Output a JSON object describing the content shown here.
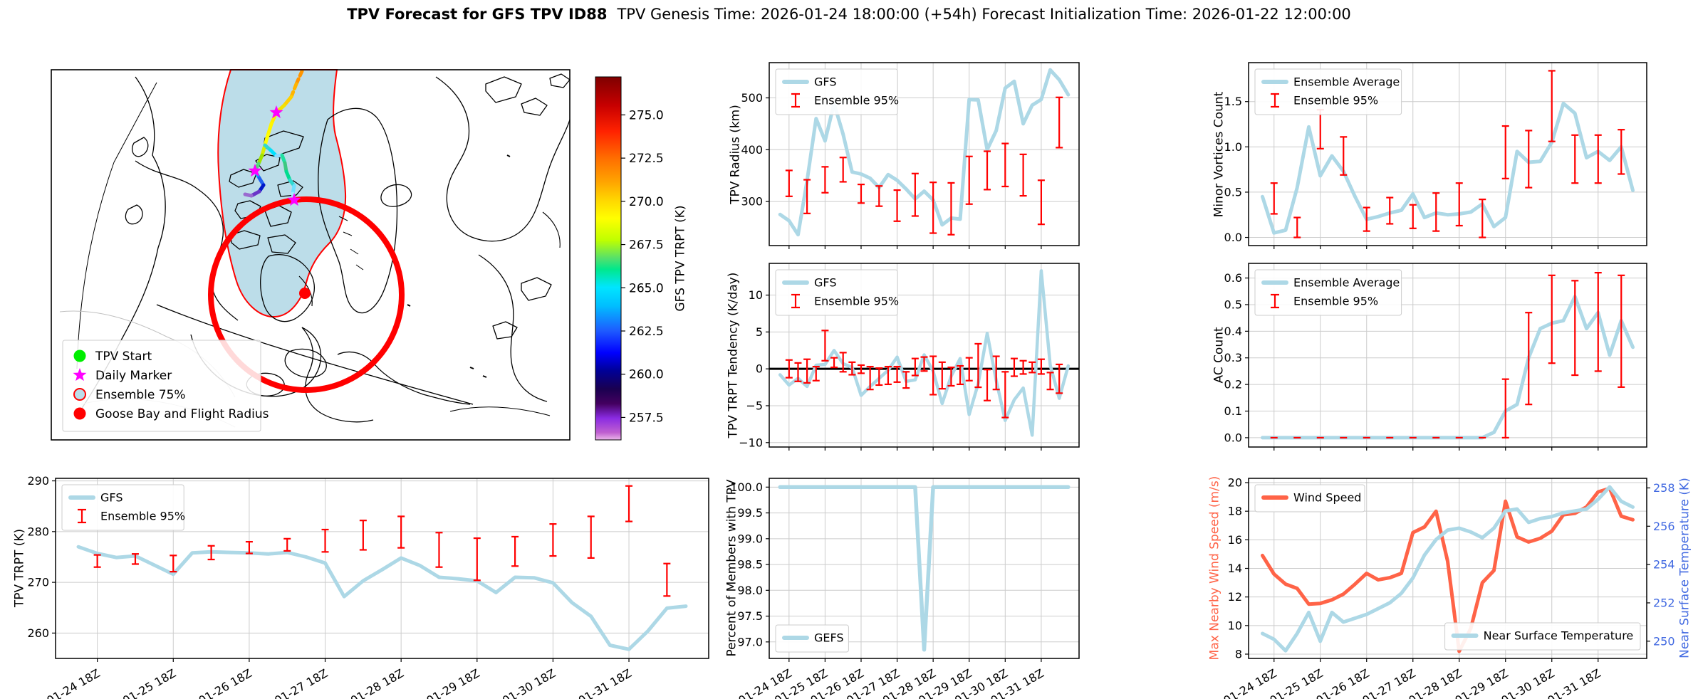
{
  "title": {
    "bold": "TPV Forecast for GFS TPV ID88",
    "tail": "TPV Genesis Time: 2026-01-24 18:00:00 (+54h)   Forecast Initialization Time: 2026-01-22 12:00:00"
  },
  "colors": {
    "line_blue": "#ADD8E6",
    "error_red": "#FF0000",
    "wind_orange": "#FF6347",
    "temp_axis_blue": "#4169E1",
    "grid": "#cccccc",
    "zero_line": "#000000",
    "ensemble_fill": "#bcdde9",
    "ensemble_edge": "#ff0000",
    "daily_marker": "#ff00ff",
    "tpv_start": "#00ee00",
    "goose_bay": "#ff0000"
  },
  "time_axis": {
    "tick_indices": [
      1,
      5,
      9,
      13,
      17,
      21,
      25,
      29
    ],
    "tick_labels": [
      "01-24 18Z",
      "01-25 18Z",
      "01-26 18Z",
      "01-27 18Z",
      "01-28 18Z",
      "01-29 18Z",
      "01-30 18Z",
      "01-31 18Z"
    ],
    "xlim": [
      -1.2,
      33.2
    ],
    "n_points": 33
  },
  "map": {
    "legend": [
      {
        "marker": "dot",
        "color": "#00ee00",
        "label": "TPV Start"
      },
      {
        "marker": "star",
        "color": "#ff00ff",
        "label": "Daily Marker"
      },
      {
        "marker": "circle-outline",
        "color": "#bcdde9",
        "edge": "#ff0000",
        "label": "Ensemble 75%"
      },
      {
        "marker": "dot",
        "color": "#ff0000",
        "label": "Goose Bay and Flight Radius"
      }
    ],
    "colorbar": {
      "label": "GFS TPV TRPT (K)",
      "ticks": [
        257.5,
        260.0,
        262.5,
        265.0,
        267.5,
        270.0,
        272.5,
        275.0
      ],
      "vmin": 256.2,
      "vmax": 277.2
    }
  },
  "chart_data": [
    {
      "id": "tpv-trpt",
      "type": "line",
      "ylabel": "TPV TRPT (K)",
      "ylim": [
        255.0,
        290.5
      ],
      "yticks": [
        260,
        270,
        280,
        290
      ],
      "ydec": 0,
      "show_x_labels": true,
      "legends": [
        {
          "pos": "tl",
          "entries": [
            {
              "swatch": "line",
              "color": "#ADD8E6",
              "label": "GFS"
            },
            {
              "swatch": "errorbar",
              "color": "#FF0000",
              "label": "Ensemble 95%"
            }
          ]
        }
      ],
      "series": [
        {
          "name": "GFS",
          "color": "#ADD8E6",
          "width": 5,
          "values": [
            277.0,
            275.7,
            274.9,
            275.2,
            273.4,
            271.6,
            275.8,
            276.0,
            275.9,
            275.8,
            275.6,
            275.9,
            275.0,
            273.8,
            267.2,
            270.3,
            272.5,
            274.8,
            273.3,
            271.0,
            270.7,
            270.3,
            268.0,
            271.0,
            270.9,
            269.9,
            266.0,
            263.3,
            257.6,
            256.8,
            260.4,
            264.9,
            265.3
          ]
        }
      ],
      "errorbars": [
        [
          1,
          273.0,
          275.4
        ],
        [
          3,
          273.6,
          275.6
        ],
        [
          5,
          272.1,
          275.3
        ],
        [
          7,
          274.5,
          277.2
        ],
        [
          9,
          275.7,
          278.0
        ],
        [
          11,
          276.2,
          278.6
        ],
        [
          13,
          276.0,
          280.4
        ],
        [
          15,
          276.4,
          282.2
        ],
        [
          17,
          276.8,
          283.0
        ],
        [
          19,
          273.0,
          279.8
        ],
        [
          21,
          270.4,
          278.7
        ],
        [
          23,
          273.2,
          279.0
        ],
        [
          25,
          275.2,
          281.5
        ],
        [
          27,
          274.8,
          283.0
        ],
        [
          29,
          282.0,
          289.0
        ],
        [
          31,
          267.3,
          273.7
        ]
      ]
    },
    {
      "id": "tpv-radius",
      "type": "line",
      "ylabel": "TPV Radius (km)",
      "ylim": [
        215,
        568
      ],
      "yticks": [
        300,
        400,
        500
      ],
      "ydec": 0,
      "show_x_labels": false,
      "legends": [
        {
          "pos": "tl",
          "entries": [
            {
              "swatch": "line",
              "color": "#ADD8E6",
              "label": "GFS"
            },
            {
              "swatch": "errorbar",
              "color": "#FF0000",
              "label": "Ensemble 95%"
            }
          ]
        }
      ],
      "series": [
        {
          "name": "GFS",
          "color": "#ADD8E6",
          "width": 5,
          "values": [
            275,
            263,
            236,
            340,
            460,
            417,
            489,
            430,
            357,
            353,
            345,
            327,
            352,
            341,
            324,
            305,
            320,
            303,
            255,
            268,
            266,
            497,
            496,
            400,
            437,
            519,
            532,
            450,
            486,
            497,
            554,
            535,
            506
          ]
        }
      ],
      "errorbars": [
        [
          1,
          310,
          360
        ],
        [
          3,
          277,
          342
        ],
        [
          5,
          317,
          367
        ],
        [
          7,
          338,
          385
        ],
        [
          9,
          297,
          333
        ],
        [
          11,
          291,
          330
        ],
        [
          13,
          262,
          322
        ],
        [
          15,
          272,
          354
        ],
        [
          17,
          239,
          337
        ],
        [
          19,
          236,
          336
        ],
        [
          21,
          295,
          387
        ],
        [
          23,
          323,
          397
        ],
        [
          25,
          329,
          412
        ],
        [
          27,
          311,
          391
        ],
        [
          29,
          256,
          341
        ],
        [
          31,
          404,
          501
        ]
      ]
    },
    {
      "id": "tpv-trpt-tendency",
      "type": "line",
      "ylabel": "TPV TRPT Tendency (K/day)",
      "ylim": [
        -10.6,
        14.3
      ],
      "yticks": [
        -10,
        -5,
        0,
        5,
        10
      ],
      "ydec": 0,
      "zero_line": true,
      "show_x_labels": false,
      "legends": [
        {
          "pos": "tl",
          "entries": [
            {
              "swatch": "line",
              "color": "#ADD8E6",
              "label": "GFS"
            },
            {
              "swatch": "errorbar",
              "color": "#FF0000",
              "label": "Ensemble 95%"
            }
          ]
        }
      ],
      "series": [
        {
          "name": "GFS",
          "color": "#ADD8E6",
          "width": 4.5,
          "values": [
            -0.8,
            -2.2,
            -1.3,
            -2.4,
            0.5,
            0.6,
            2.5,
            0.7,
            0.2,
            -3.6,
            -2.4,
            -1.3,
            -0.2,
            1.6,
            -1.7,
            -1.5,
            1.9,
            -0.3,
            -4.7,
            -1.0,
            1.4,
            -6.2,
            -2.0,
            4.8,
            -1.6,
            -7.0,
            -4.2,
            -2.6,
            -9.0,
            13.3,
            0.5,
            -4.0,
            0.4
          ]
        }
      ],
      "errorbars": [
        [
          1,
          -1.2,
          1.2
        ],
        [
          2,
          -1.7,
          0.8
        ],
        [
          3,
          -1.9,
          1.3
        ],
        [
          4,
          -1.6,
          0.3
        ],
        [
          5,
          1.1,
          5.2
        ],
        [
          6,
          0.2,
          1.5
        ],
        [
          7,
          -0.4,
          2.2
        ],
        [
          8,
          -0.8,
          0.9
        ],
        [
          9,
          -0.6,
          0.5
        ],
        [
          10,
          -2.8,
          0.3
        ],
        [
          11,
          -2.2,
          0.1
        ],
        [
          12,
          -2.1,
          0.3
        ],
        [
          13,
          -1.8,
          0.3
        ],
        [
          14,
          -2.6,
          -0.4
        ],
        [
          15,
          -0.9,
          1.4
        ],
        [
          16,
          -0.3,
          1.6
        ],
        [
          17,
          -3.5,
          1.7
        ],
        [
          18,
          -2.7,
          0.9
        ],
        [
          19,
          -2.3,
          0.2
        ],
        [
          20,
          -2.1,
          0.4
        ],
        [
          21,
          -1.6,
          1.5
        ],
        [
          22,
          -2.5,
          3.4
        ],
        [
          23,
          -4.3,
          -0.1
        ],
        [
          24,
          -2.8,
          1.7
        ],
        [
          25,
          -6.6,
          -0.4
        ],
        [
          26,
          -1.0,
          1.4
        ],
        [
          27,
          -0.7,
          1.1
        ],
        [
          28,
          -0.5,
          0.9
        ],
        [
          29,
          -0.7,
          1.3
        ],
        [
          30,
          -2.8,
          -0.5
        ],
        [
          31,
          -3.3,
          0.6
        ]
      ]
    },
    {
      "id": "percent-members",
      "type": "line",
      "ylabel": "Percent of Members with TPV",
      "ylim": [
        96.68,
        100.17
      ],
      "yticks": [
        97.0,
        97.5,
        98.0,
        98.5,
        99.0,
        99.5,
        100.0
      ],
      "ydec": 1,
      "show_x_labels": true,
      "legends": [
        {
          "pos": "bl",
          "entries": [
            {
              "swatch": "line",
              "color": "#ADD8E6",
              "label": "GEFS"
            }
          ]
        }
      ],
      "series": [
        {
          "name": "GEFS",
          "color": "#ADD8E6",
          "width": 5.5,
          "values": [
            100,
            100,
            100,
            100,
            100,
            100,
            100,
            100,
            100,
            100,
            100,
            100,
            100,
            100,
            100,
            100,
            96.85,
            100,
            100,
            100,
            100,
            100,
            100,
            100,
            100,
            100,
            100,
            100,
            100,
            100,
            100,
            100,
            100
          ]
        }
      ],
      "errorbars": []
    },
    {
      "id": "minor-vortices-count",
      "type": "line",
      "ylabel": "Minor Vortices Count",
      "ylim": [
        -0.09,
        1.93
      ],
      "yticks": [
        0.0,
        0.5,
        1.0,
        1.5
      ],
      "ydec": 1,
      "show_x_labels": false,
      "legends": [
        {
          "pos": "tl",
          "entries": [
            {
              "swatch": "line",
              "color": "#ADD8E6",
              "label": "Ensemble Average"
            },
            {
              "swatch": "errorbar",
              "color": "#FF0000",
              "label": "Ensemble 95%"
            }
          ]
        }
      ],
      "series": [
        {
          "name": "Ensemble Average",
          "color": "#ADD8E6",
          "width": 5,
          "values": [
            0.45,
            0.05,
            0.08,
            0.55,
            1.22,
            0.68,
            0.9,
            0.73,
            0.45,
            0.2,
            0.23,
            0.27,
            0.3,
            0.48,
            0.22,
            0.27,
            0.25,
            0.26,
            0.28,
            0.37,
            0.12,
            0.22,
            0.95,
            0.83,
            0.84,
            1.05,
            1.48,
            1.37,
            0.88,
            0.95,
            0.85,
            1.0,
            0.52
          ]
        }
      ],
      "errorbars": [
        [
          1,
          0.26,
          0.6
        ],
        [
          3,
          0.0,
          0.22
        ],
        [
          5,
          0.98,
          1.41
        ],
        [
          7,
          0.69,
          1.11
        ],
        [
          9,
          0.07,
          0.33
        ],
        [
          11,
          0.15,
          0.44
        ],
        [
          13,
          0.1,
          0.36
        ],
        [
          15,
          0.07,
          0.49
        ],
        [
          17,
          0.13,
          0.6
        ],
        [
          19,
          0.0,
          0.42
        ],
        [
          21,
          0.65,
          1.23
        ],
        [
          23,
          0.55,
          1.18
        ],
        [
          25,
          1.06,
          1.84
        ],
        [
          27,
          0.6,
          1.13
        ],
        [
          29,
          0.6,
          1.13
        ],
        [
          31,
          0.7,
          1.19
        ]
      ]
    },
    {
      "id": "ac-count",
      "type": "line",
      "ylabel": "AC Count",
      "ylim": [
        -0.035,
        0.655
      ],
      "yticks": [
        0.0,
        0.1,
        0.2,
        0.3,
        0.4,
        0.5,
        0.6
      ],
      "ydec": 1,
      "show_x_labels": false,
      "legends": [
        {
          "pos": "tl",
          "entries": [
            {
              "swatch": "line",
              "color": "#ADD8E6",
              "label": "Ensemble Average"
            },
            {
              "swatch": "errorbar",
              "color": "#FF0000",
              "label": "Ensemble 95%"
            }
          ]
        }
      ],
      "series": [
        {
          "name": "Ensemble Average",
          "color": "#ADD8E6",
          "width": 5,
          "values": [
            0,
            0,
            0,
            0,
            0,
            0,
            0,
            0,
            0,
            0,
            0,
            0,
            0,
            0,
            0,
            0,
            0,
            0,
            0,
            0,
            0.02,
            0.1,
            0.125,
            0.3,
            0.41,
            0.43,
            0.44,
            0.53,
            0.41,
            0.47,
            0.31,
            0.44,
            0.34
          ]
        }
      ],
      "errorbars": [
        [
          1,
          0,
          0
        ],
        [
          3,
          0,
          0
        ],
        [
          5,
          0,
          0
        ],
        [
          7,
          0,
          0
        ],
        [
          9,
          0,
          0
        ],
        [
          11,
          0,
          0
        ],
        [
          13,
          0,
          0
        ],
        [
          15,
          0,
          0
        ],
        [
          17,
          0,
          0
        ],
        [
          19,
          0,
          0
        ],
        [
          21,
          0.0,
          0.22
        ],
        [
          23,
          0.125,
          0.47
        ],
        [
          25,
          0.28,
          0.61
        ],
        [
          27,
          0.235,
          0.59
        ],
        [
          29,
          0.25,
          0.62
        ],
        [
          31,
          0.19,
          0.61
        ]
      ]
    },
    {
      "id": "wind-and-temp",
      "type": "line",
      "ylabel": "Max Nearby Wind Speed (m/s)",
      "ylim": [
        7.7,
        20.3
      ],
      "yticks": [
        8,
        10,
        12,
        14,
        16,
        18,
        20
      ],
      "ydec": 0,
      "ylabel_color": "#FF6347",
      "show_x_labels": true,
      "right": {
        "label": "Near Surface Temperature (K)",
        "ylim": [
          249.1,
          258.5
        ],
        "yticks": [
          250,
          252,
          254,
          256,
          258
        ],
        "ydec": 0,
        "color": "#4169E1"
      },
      "legends": [
        {
          "pos": "tl",
          "entries": [
            {
              "swatch": "line",
              "color": "#FF6347",
              "label": "Wind Speed"
            }
          ]
        },
        {
          "pos": "br",
          "entries": [
            {
              "swatch": "line",
              "color": "#ADD8E6",
              "label": "Near Surface Temperature"
            }
          ]
        }
      ],
      "series": [
        {
          "name": "Wind Speed",
          "color": "#FF6347",
          "width": 5,
          "axis": "left",
          "values": [
            14.9,
            13.6,
            12.9,
            12.6,
            11.5,
            11.55,
            11.8,
            12.2,
            12.9,
            13.65,
            13.2,
            13.35,
            13.65,
            16.5,
            16.9,
            18.0,
            14.5,
            8.2,
            9.8,
            13.0,
            13.85,
            18.7,
            16.2,
            15.85,
            16.1,
            16.6,
            17.75,
            17.85,
            18.3,
            19.35,
            19.6,
            17.65,
            17.4
          ]
        },
        {
          "name": "Near Surface Temperature",
          "color": "#ADD8E6",
          "width": 5,
          "axis": "right",
          "values": [
            250.4,
            250.1,
            249.5,
            250.4,
            251.5,
            250.0,
            251.5,
            251.0,
            251.2,
            251.4,
            251.7,
            252.0,
            252.5,
            253.3,
            254.5,
            255.3,
            255.8,
            255.9,
            255.7,
            255.4,
            255.9,
            256.8,
            256.9,
            256.2,
            256.4,
            256.5,
            256.7,
            256.8,
            256.9,
            257.4,
            258.05,
            257.3,
            257.0
          ]
        }
      ],
      "errorbars": []
    }
  ]
}
